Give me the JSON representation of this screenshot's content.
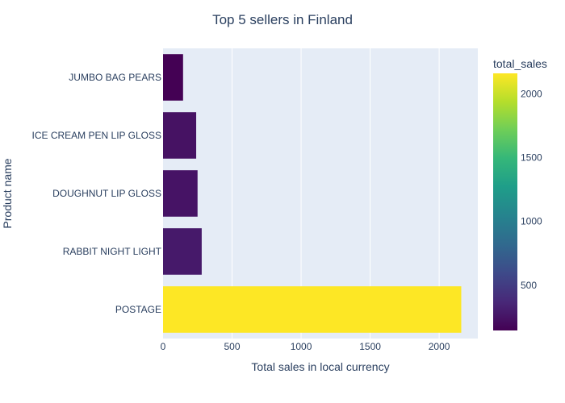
{
  "chart_data": {
    "type": "bar",
    "orientation": "horizontal",
    "title": "Top 5 sellers in Finland",
    "xlabel": "Total sales in local currency",
    "ylabel": "Product name",
    "categories": [
      "POSTAGE",
      "RABBIT NIGHT LIGHT",
      "DOUGHNUT LIP GLOSS",
      "ICE CREAM PEN LIP GLOSS",
      "JUMBO BAG PEARS"
    ],
    "values": [
      2160,
      280,
      250,
      240,
      145
    ],
    "xlim": [
      0,
      2280
    ],
    "x_ticks": [
      0,
      500,
      1000,
      1500,
      2000
    ],
    "grid": true,
    "colorbar": {
      "title": "total_sales",
      "range": [
        145,
        2160
      ],
      "ticks": [
        500,
        1000,
        1500,
        2000
      ],
      "colorscale": "Viridis"
    },
    "background_color": "#e5ecf6"
  }
}
